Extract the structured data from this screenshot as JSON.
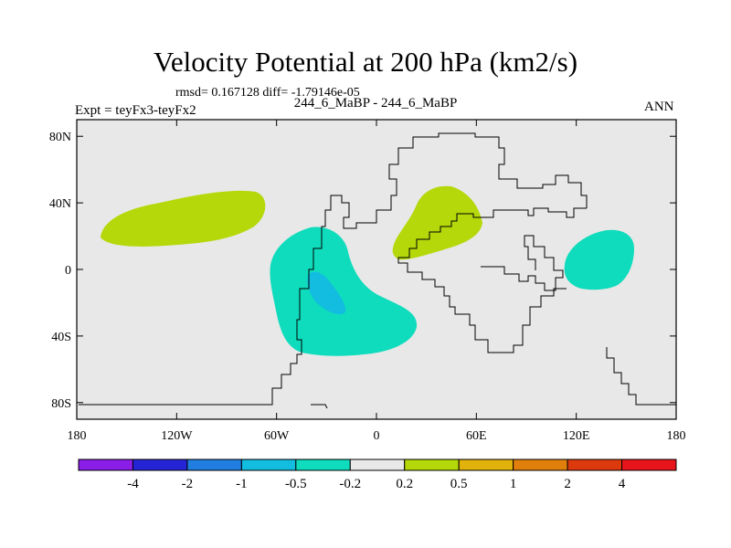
{
  "title": "Velocity Potential at 200 hPa (km2/s)",
  "stats": "rmsd= 0.167128 diff= -1.79146e-05",
  "subtitle": "244_6_MaBP - 244_6_MaBP",
  "left_label": "Expt = teyFx3-teyFx2",
  "right_label": "ANN",
  "chart_data": {
    "type": "contour-map",
    "title": "Velocity Potential at 200 hPa (km2/s)",
    "x_ticks": [
      "180",
      "120W",
      "60W",
      "0",
      "60E",
      "120E",
      "180"
    ],
    "x_tick_values": [
      -180,
      -120,
      -60,
      0,
      60,
      120,
      180
    ],
    "y_ticks": [
      "80N",
      "40N",
      "0",
      "40S",
      "80S"
    ],
    "y_tick_values": [
      80,
      40,
      0,
      -40,
      -80
    ],
    "xlim": [
      -180,
      180
    ],
    "ylim": [
      -90,
      90
    ],
    "colorbar": {
      "labels": [
        "-4",
        "-2",
        "-1",
        "-0.5",
        "-0.2",
        "0.2",
        "0.5",
        "1",
        "2",
        "4"
      ],
      "levels": [
        -4,
        -2,
        -1,
        -0.5,
        -0.2,
        0.2,
        0.5,
        1,
        2,
        4
      ],
      "colors": [
        "#8a1de8",
        "#2424d6",
        "#1f7ee0",
        "#12bde0",
        "#0fdcbc",
        "#e8e8e8",
        "#b4d80a",
        "#e2b20c",
        "#e07f0c",
        "#dc3a0c",
        "#e8141c"
      ]
    },
    "regions": [
      {
        "name": "north-pacific-positive",
        "range": "0.2 to 0.5",
        "color": "#b4d80a"
      },
      {
        "name": "south-america-negative",
        "range": "-0.5 to -0.2",
        "color": "#0fdcbc"
      },
      {
        "name": "south-america-negative-core",
        "range": "-1 to -0.5",
        "color": "#12bde0"
      },
      {
        "name": "africa-middle-east-positive",
        "range": "0.2 to 0.5",
        "color": "#b4d80a"
      },
      {
        "name": "maritime-continent-negative",
        "range": "-0.5 to -0.2",
        "color": "#0fdcbc"
      }
    ]
  }
}
